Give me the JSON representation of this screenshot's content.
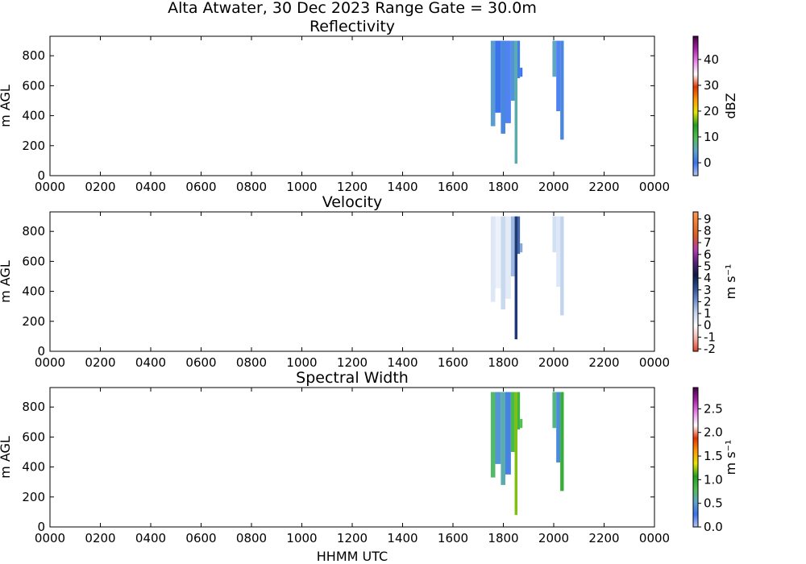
{
  "figure": {
    "suptitle": "Alta Atwater, 30 Dec 2023 Range Gate = 30.0m",
    "xlabel": "HHMM UTC"
  },
  "chart_data": [
    {
      "type": "heatmap",
      "title": "Reflectivity",
      "ylabel": "m AGL",
      "xlim": [
        0,
        2400
      ],
      "ylim": [
        0,
        930
      ],
      "x_ticks": [
        "0000",
        "0200",
        "0400",
        "0600",
        "0800",
        "1000",
        "1200",
        "1400",
        "1600",
        "1800",
        "2000",
        "2200",
        "0000"
      ],
      "y_ticks": [
        0,
        200,
        400,
        600,
        800
      ],
      "colorbar": {
        "label": "dBZ",
        "range": [
          -5,
          49
        ],
        "ticks": [
          "0",
          "10",
          "20",
          "30",
          "40"
        ],
        "tick_values": [
          0,
          10,
          20,
          30,
          40
        ],
        "stops": [
          "#b3c6f7",
          "#3a72f0",
          "#5fa6c9",
          "#4fbf4f",
          "#22a022",
          "#e6e600",
          "#ff9900",
          "#e63300",
          "#ffffff",
          "#ee88ee",
          "#aa22aa",
          "#440044"
        ]
      },
      "echoes": [
        {
          "x": [
            1750,
            1768
          ],
          "y": [
            330,
            900
          ],
          "z": 4
        },
        {
          "x": [
            1768,
            1790
          ],
          "y": [
            420,
            900
          ],
          "z": 0
        },
        {
          "x": [
            1790,
            1808
          ],
          "y": [
            280,
            900
          ],
          "z": 2
        },
        {
          "x": [
            1808,
            1830
          ],
          "y": [
            350,
            900
          ],
          "z": -1
        },
        {
          "x": [
            1830,
            1845
          ],
          "y": [
            500,
            900
          ],
          "z": 3
        },
        {
          "x": [
            1845,
            1856
          ],
          "y": [
            80,
            900
          ],
          "z": 6
        },
        {
          "x": [
            1856,
            1866
          ],
          "y": [
            650,
            900
          ],
          "z": 1
        },
        {
          "x": [
            1866,
            1876
          ],
          "y": [
            660,
            720
          ],
          "z": 0
        },
        {
          "x": [
            1995,
            2010
          ],
          "y": [
            660,
            900
          ],
          "z": 5
        },
        {
          "x": [
            2010,
            2026
          ],
          "y": [
            430,
            900
          ],
          "z": -1
        },
        {
          "x": [
            2026,
            2040
          ],
          "y": [
            240,
            900
          ],
          "z": 2
        }
      ]
    },
    {
      "type": "heatmap",
      "title": "Velocity",
      "ylabel": "m AGL",
      "xlim": [
        0,
        2400
      ],
      "ylim": [
        0,
        930
      ],
      "x_ticks": [
        "0000",
        "0200",
        "0400",
        "0600",
        "0800",
        "1000",
        "1200",
        "1400",
        "1600",
        "1800",
        "2000",
        "2200",
        "0000"
      ],
      "y_ticks": [
        0,
        200,
        400,
        600,
        800
      ],
      "colorbar": {
        "label": "m s⁻¹",
        "range": [
          -2.2,
          9.6
        ],
        "ticks": [
          "-2",
          "-1",
          "0",
          "1",
          "2",
          "3",
          "4",
          "5",
          "6",
          "7",
          "8",
          "9"
        ],
        "tick_values": [
          -2,
          -1,
          0,
          1,
          2,
          3,
          4,
          5,
          6,
          7,
          8,
          9
        ],
        "stops": [
          "#e04020",
          "#f5b0a8",
          "#ffffff",
          "#c8d8f0",
          "#6f93cf",
          "#2c4f96",
          "#0d1a44",
          "#55207a",
          "#b33cb3",
          "#d8582c",
          "#f07a2a",
          "#ff9a5a"
        ]
      },
      "echoes": [
        {
          "x": [
            1750,
            1768
          ],
          "y": [
            330,
            900
          ],
          "z": 0.6
        },
        {
          "x": [
            1768,
            1790
          ],
          "y": [
            420,
            900
          ],
          "z": 0.3
        },
        {
          "x": [
            1790,
            1808
          ],
          "y": [
            280,
            900
          ],
          "z": 1.0
        },
        {
          "x": [
            1808,
            1830
          ],
          "y": [
            350,
            900
          ],
          "z": 0.5
        },
        {
          "x": [
            1830,
            1845
          ],
          "y": [
            500,
            900
          ],
          "z": 1.5
        },
        {
          "x": [
            1845,
            1856
          ],
          "y": [
            80,
            900
          ],
          "z": 3.6
        },
        {
          "x": [
            1856,
            1866
          ],
          "y": [
            650,
            900
          ],
          "z": 2.8
        },
        {
          "x": [
            1866,
            1876
          ],
          "y": [
            660,
            720
          ],
          "z": 1.8
        },
        {
          "x": [
            1995,
            2010
          ],
          "y": [
            660,
            900
          ],
          "z": 0.8
        },
        {
          "x": [
            2010,
            2026
          ],
          "y": [
            430,
            900
          ],
          "z": 0.6
        },
        {
          "x": [
            2026,
            2040
          ],
          "y": [
            240,
            900
          ],
          "z": 1.1
        }
      ]
    },
    {
      "type": "heatmap",
      "title": "Spectral Width",
      "ylabel": "m AGL",
      "xlim": [
        0,
        2400
      ],
      "ylim": [
        0,
        930
      ],
      "x_ticks": [
        "0000",
        "0200",
        "0400",
        "0600",
        "0800",
        "1000",
        "1200",
        "1400",
        "1600",
        "1800",
        "2000",
        "2200",
        "0000"
      ],
      "y_ticks": [
        0,
        200,
        400,
        600,
        800
      ],
      "colorbar": {
        "label": "m s⁻¹",
        "range": [
          0,
          2.95
        ],
        "ticks": [
          "0.0",
          "0.5",
          "1.0",
          "1.5",
          "2.0",
          "2.5"
        ],
        "tick_values": [
          0,
          0.5,
          1.0,
          1.5,
          2.0,
          2.5
        ],
        "stops": [
          "#b3c6f7",
          "#3a72f0",
          "#5fa6c9",
          "#4fbf4f",
          "#22a022",
          "#e6e600",
          "#ff9900",
          "#e63300",
          "#ffffff",
          "#ee88ee",
          "#aa22aa",
          "#440044"
        ]
      },
      "echoes": [
        {
          "x": [
            1750,
            1768
          ],
          "y": [
            330,
            900
          ],
          "z": 0.75
        },
        {
          "x": [
            1768,
            1790
          ],
          "y": [
            420,
            900
          ],
          "z": 0.45
        },
        {
          "x": [
            1790,
            1808
          ],
          "y": [
            280,
            900
          ],
          "z": 0.6
        },
        {
          "x": [
            1808,
            1830
          ],
          "y": [
            350,
            900
          ],
          "z": 0.35
        },
        {
          "x": [
            1830,
            1845
          ],
          "y": [
            500,
            900
          ],
          "z": 0.85
        },
        {
          "x": [
            1845,
            1856
          ],
          "y": [
            80,
            900
          ],
          "z": 1.2
        },
        {
          "x": [
            1856,
            1866
          ],
          "y": [
            650,
            900
          ],
          "z": 0.9
        },
        {
          "x": [
            1866,
            1876
          ],
          "y": [
            660,
            720
          ],
          "z": 0.8
        },
        {
          "x": [
            1995,
            2010
          ],
          "y": [
            660,
            900
          ],
          "z": 0.7
        },
        {
          "x": [
            2010,
            2026
          ],
          "y": [
            430,
            900
          ],
          "z": 0.4
        },
        {
          "x": [
            2026,
            2040
          ],
          "y": [
            240,
            900
          ],
          "z": 0.95
        }
      ]
    }
  ]
}
